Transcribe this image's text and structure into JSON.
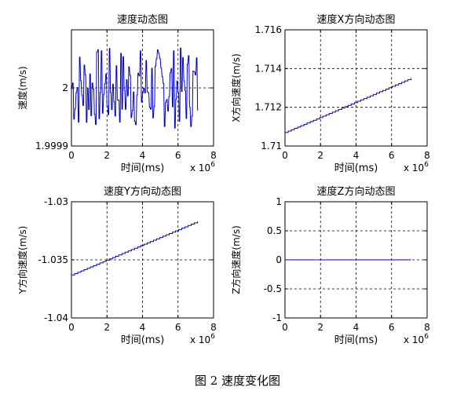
{
  "figure_caption": "图 2  速度变化图",
  "chart_data": [
    {
      "type": "line",
      "title": "速度动态图",
      "xlabel": "时间(ms)",
      "ylabel": "速度(m/s)",
      "xlim": [
        0,
        8
      ],
      "x_ticks": [
        "0",
        "2",
        "4",
        "6",
        "8"
      ],
      "x_multiplier": "x 10^6",
      "ylim": [
        1.9999,
        2.0001
      ],
      "y_ticks": [
        {
          "v": 1.9999,
          "label": "1.9999"
        },
        {
          "v": 2.0,
          "label": "2"
        }
      ],
      "grid": true,
      "color": "#0000cc",
      "series": [
        {
          "x_range": [
            0,
            7.1
          ],
          "pattern": "noise",
          "center": 2.0,
          "amplitude": 7e-05
        }
      ]
    },
    {
      "type": "line",
      "title": "速度X方向动态图",
      "xlabel": "时间(ms)",
      "ylabel": "X方向速度(m/s)",
      "xlim": [
        0,
        8
      ],
      "x_ticks": [
        "0",
        "2",
        "4",
        "6",
        "8"
      ],
      "x_multiplier": "x 10^6",
      "ylim": [
        1.71,
        1.716
      ],
      "y_ticks": [
        {
          "v": 1.71,
          "label": "1.71"
        },
        {
          "v": 1.712,
          "label": "1.712"
        },
        {
          "v": 1.714,
          "label": "1.714"
        },
        {
          "v": 1.716,
          "label": "1.716"
        }
      ],
      "grid": true,
      "color": "#0000cc",
      "series": [
        {
          "x": [
            0,
            7.1
          ],
          "y": [
            1.7107,
            1.7135
          ],
          "pattern": "stepped"
        }
      ]
    },
    {
      "type": "line",
      "title": "速度Y方向动态图",
      "xlabel": "时间(ms)",
      "ylabel": "Y方向速度(m/s)",
      "xlim": [
        0,
        8
      ],
      "x_ticks": [
        "0",
        "2",
        "4",
        "6",
        "8"
      ],
      "x_multiplier": "x 10^6",
      "ylim": [
        -1.04,
        -1.03
      ],
      "y_ticks": [
        {
          "v": -1.04,
          "label": "-1.04"
        },
        {
          "v": -1.035,
          "label": "-1.035"
        },
        {
          "v": -1.03,
          "label": "-1.03"
        }
      ],
      "grid": true,
      "color": "#0000cc",
      "series": [
        {
          "x": [
            0,
            7.1
          ],
          "y": [
            -1.0363,
            -1.0317
          ],
          "pattern": "stepped"
        }
      ]
    },
    {
      "type": "line",
      "title": "速度Z方向动态图",
      "xlabel": "时间(ms)",
      "ylabel": "Z方向速度(m/s)",
      "xlim": [
        0,
        8
      ],
      "x_ticks": [
        "0",
        "2",
        "4",
        "6",
        "8"
      ],
      "x_multiplier": "x 10^6",
      "ylim": [
        -1,
        1
      ],
      "y_ticks": [
        {
          "v": -1,
          "label": "-1"
        },
        {
          "v": -0.5,
          "label": "-0.5"
        },
        {
          "v": 0,
          "label": "0"
        },
        {
          "v": 0.5,
          "label": "0.5"
        },
        {
          "v": 1,
          "label": "1"
        }
      ],
      "grid": true,
      "color": "#0000cc",
      "series": [
        {
          "x": [
            0,
            7.1
          ],
          "y": [
            0,
            0
          ]
        }
      ]
    }
  ]
}
